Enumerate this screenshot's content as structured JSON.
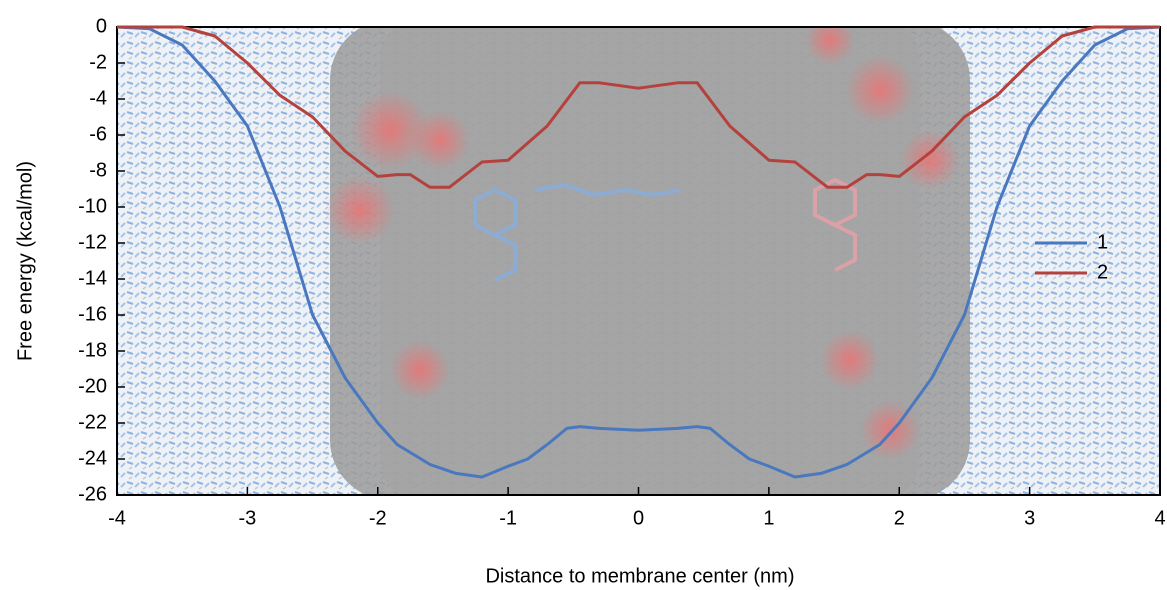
{
  "chart_data": {
    "type": "line",
    "xlabel": "Distance to membrane center (nm)",
    "ylabel": "Free energy (kcal/mol)",
    "xlim": [
      -4,
      4
    ],
    "ylim": [
      -26,
      0
    ],
    "xticks": [
      -4,
      -3,
      -2,
      -1,
      0,
      1,
      2,
      3,
      4
    ],
    "yticks": [
      0,
      -2,
      -4,
      -6,
      -8,
      -10,
      -12,
      -14,
      -16,
      -18,
      -20,
      -22,
      -24,
      -26
    ],
    "legend": "right",
    "series": [
      {
        "name": "1",
        "color": "#4a78bf",
        "x": [
          -4,
          -3.75,
          -3.5,
          -3.25,
          -3,
          -2.75,
          -2.5,
          -2.25,
          -2,
          -1.85,
          -1.6,
          -1.4,
          -1.2,
          -1,
          -0.85,
          -0.7,
          -0.55,
          -0.45,
          -0.3,
          0,
          0.3,
          0.45,
          0.55,
          0.7,
          0.85,
          1,
          1.2,
          1.4,
          1.6,
          1.85,
          2,
          2.25,
          2.5,
          2.75,
          3,
          3.25,
          3.5,
          3.75,
          4
        ],
        "values": [
          0,
          -0.1,
          -1,
          -3,
          -5.5,
          -10,
          -16,
          -19.5,
          -22,
          -23.2,
          -24.3,
          -24.8,
          -25,
          -24.4,
          -24,
          -23.2,
          -22.3,
          -22.2,
          -22.3,
          -22.4,
          -22.3,
          -22.2,
          -22.3,
          -23.2,
          -24,
          -24.4,
          -25,
          -24.8,
          -24.3,
          -23.2,
          -22,
          -19.5,
          -16,
          -10,
          -5.5,
          -3,
          -1,
          -0.1,
          0
        ]
      },
      {
        "name": "2",
        "color": "#b5413d",
        "x": [
          -4,
          -3.5,
          -3.25,
          -3,
          -2.75,
          -2.5,
          -2.25,
          -2,
          -1.85,
          -1.75,
          -1.6,
          -1.45,
          -1.2,
          -1,
          -0.7,
          -0.45,
          -0.3,
          0,
          0.3,
          0.45,
          0.7,
          1,
          1.2,
          1.45,
          1.6,
          1.75,
          1.85,
          2,
          2.25,
          2.5,
          2.75,
          3,
          3.25,
          3.5,
          4
        ],
        "values": [
          0,
          0,
          -0.5,
          -2,
          -3.8,
          -5,
          -6.9,
          -8.3,
          -8.2,
          -8.2,
          -8.9,
          -8.9,
          -7.5,
          -7.4,
          -5.5,
          -3.1,
          -3.1,
          -3.4,
          -3.1,
          -3.1,
          -5.5,
          -7.4,
          -7.5,
          -8.9,
          -8.9,
          -8.2,
          -8.2,
          -8.3,
          -6.9,
          -5,
          -3.8,
          -2,
          -0.5,
          0,
          0
        ]
      }
    ]
  }
}
